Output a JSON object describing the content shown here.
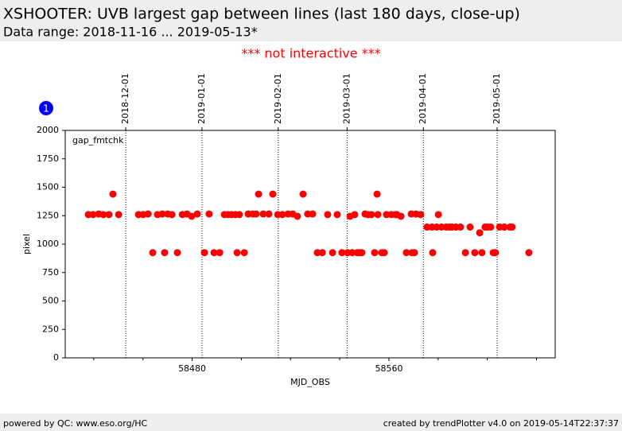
{
  "header": {
    "title": "XSHOOTER: UVB largest gap between lines (last 180 days, close-up)",
    "subtitle": "Data range: 2018-11-16 ... 2019-05-13*"
  },
  "notice": "*** not interactive ***",
  "badge": "1",
  "footer": {
    "left": "powered by QC: www.eso.org/HC",
    "right": "created by trendPlotter v4.0 on 2019-05-14T22:37:37"
  },
  "chart_data": {
    "type": "scatter",
    "legend_label": "gap_fmtchk",
    "xlabel": "MJD_OBS",
    "ylabel": "pixel",
    "color": "#ff0000",
    "xlim": [
      58428.4,
      58627.6
    ],
    "xticks": [
      58480,
      58560
    ],
    "x_minor_ticks": [
      58440,
      58460,
      58500,
      58520,
      58540,
      58580,
      58600,
      58620
    ],
    "ylim": [
      0,
      2000
    ],
    "yticks": [
      0,
      250,
      500,
      750,
      1000,
      1250,
      1500,
      1750,
      2000
    ],
    "date_lines": [
      {
        "x": 58453,
        "label": "2018-12-01"
      },
      {
        "x": 58484,
        "label": "2019-01-01"
      },
      {
        "x": 58515,
        "label": "2019-02-01"
      },
      {
        "x": 58543,
        "label": "2019-03-01"
      },
      {
        "x": 58574,
        "label": "2019-04-01"
      },
      {
        "x": 58604,
        "label": "2019-05-01"
      }
    ],
    "x": [
      58437.8,
      58439.7,
      58442.0,
      58443.9,
      58446.2,
      58447.8,
      58450.1,
      58458.2,
      58460.1,
      58462.1,
      58464.0,
      58465.9,
      58467.9,
      58468.8,
      58470.1,
      58471.8,
      58474.0,
      58476.0,
      58477.9,
      58479.8,
      58482.1,
      58485.0,
      58486.9,
      58488.9,
      58491.2,
      58493.1,
      58494.7,
      58496.0,
      58497.6,
      58498.3,
      58499.2,
      58501.2,
      58502.8,
      58504.7,
      58506.0,
      58507.0,
      58508.9,
      58511.2,
      58512.8,
      58514.8,
      58516.7,
      58519.0,
      58520.9,
      58522.8,
      58525.1,
      58527.0,
      58529.0,
      58530.9,
      58532.9,
      58535.1,
      58537.1,
      58539.0,
      58540.9,
      58543.2,
      58544.2,
      58545.1,
      58546.1,
      58547.1,
      58548.1,
      58549.0,
      58550.3,
      58551.6,
      58552.9,
      58554.2,
      58555.2,
      58555.5,
      58557.1,
      58558.1,
      58559.0,
      58561.0,
      58562.6,
      58563.2,
      58564.9,
      58567.1,
      58569.1,
      58569.4,
      58570.4,
      58571.0,
      58572.9,
      58575.5,
      58577.5,
      58577.8,
      58579.4,
      58580.1,
      58581.4,
      58583.3,
      58584.6,
      58585.6,
      58587.2,
      58589.1,
      58591.1,
      58593.0,
      58594.9,
      58596.9,
      58597.8,
      58599.1,
      58600.1,
      58601.4,
      58602.4,
      58603.3,
      58605.0,
      58606.9,
      58609.2,
      58610.1,
      58616.9
    ],
    "values": [
      1260,
      1260,
      1265,
      1260,
      1260,
      1440,
      1260,
      1260,
      1260,
      1265,
      925,
      1260,
      1265,
      925,
      1265,
      1260,
      925,
      1260,
      1265,
      1245,
      1265,
      925,
      1265,
      925,
      925,
      1260,
      1260,
      1260,
      1260,
      925,
      1260,
      925,
      1265,
      1265,
      1265,
      1440,
      1265,
      1265,
      1440,
      1260,
      1260,
      1265,
      1265,
      1245,
      1440,
      1265,
      1265,
      925,
      925,
      1260,
      925,
      1260,
      925,
      925,
      1245,
      925,
      1260,
      925,
      925,
      925,
      1265,
      1260,
      1260,
      925,
      1440,
      1260,
      925,
      925,
      1260,
      1260,
      1260,
      1260,
      1245,
      925,
      1265,
      925,
      925,
      1265,
      1260,
      1150,
      1150,
      925,
      1150,
      1260,
      1150,
      1150,
      1150,
      1150,
      1150,
      1150,
      925,
      1150,
      925,
      1100,
      925,
      1150,
      1150,
      1150,
      925,
      925,
      1150,
      1150,
      1150,
      1150,
      925
    ]
  }
}
